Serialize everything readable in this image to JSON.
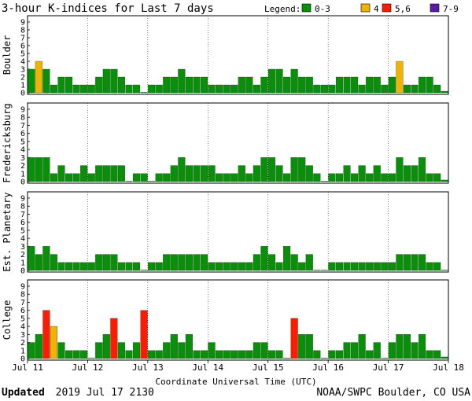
{
  "title": "3-hour K-indices for Last 7 days",
  "legend": {
    "label": "Legend:",
    "items": [
      {
        "label": "0-3",
        "color": "#0a8f0a"
      },
      {
        "label": "4",
        "color": "#f0b400"
      },
      {
        "label": "5,6",
        "color": "#ff1a00"
      },
      {
        "label": "7-9",
        "color": "#5b1aa8"
      }
    ]
  },
  "footer": {
    "updated_label": "Updated",
    "updated_value": "2019 Jul 17 2130",
    "credit": "NOAA/SWPC Boulder, CO USA"
  },
  "chart_data": {
    "type": "bar",
    "xlabel": "Coordinate Universal Time (UTC)",
    "x_ticks": [
      "Jul 11",
      "Jul 12",
      "Jul 13",
      "Jul 14",
      "Jul 15",
      "Jul 16",
      "Jul 17",
      "Jul 18"
    ],
    "ylim": [
      0,
      9
    ],
    "y_ticks": [
      0,
      1,
      2,
      3,
      4,
      5,
      6,
      7,
      8,
      9
    ],
    "bar_interval": "3 hours",
    "series": [
      {
        "name": "Boulder",
        "values": [
          3,
          4,
          3,
          1,
          2,
          2,
          1,
          1,
          1,
          2,
          3,
          3,
          2,
          1,
          1,
          0,
          1,
          1,
          2,
          2,
          3,
          2,
          2,
          2,
          1,
          1,
          1,
          1,
          2,
          2,
          1,
          2,
          3,
          3,
          2,
          3,
          2,
          2,
          1,
          1,
          1,
          2,
          2,
          2,
          1,
          2,
          2,
          1,
          2,
          4,
          1,
          1,
          2,
          2,
          1,
          0.2
        ]
      },
      {
        "name": "Fredericksburg",
        "values": [
          3,
          3,
          3,
          1,
          2,
          1,
          1,
          2,
          1,
          2,
          2,
          2,
          2,
          0,
          1,
          1,
          0,
          1,
          1,
          2,
          3,
          2,
          2,
          2,
          2,
          1,
          1,
          1,
          2,
          1,
          2,
          3,
          3,
          2,
          1,
          3,
          3,
          2,
          1,
          0,
          1,
          1,
          2,
          1,
          2,
          1,
          2,
          1,
          1,
          3,
          2,
          2,
          3,
          1,
          1,
          0.2
        ]
      },
      {
        "name": "Est. Planetary",
        "values": [
          3,
          2,
          3,
          2,
          1,
          1,
          1,
          1,
          1,
          2,
          2,
          2,
          1,
          1,
          1,
          0,
          1,
          1,
          2,
          2,
          2,
          2,
          2,
          2,
          1,
          1,
          1,
          1,
          1,
          1,
          2,
          3,
          2,
          1,
          3,
          2,
          1,
          2,
          0,
          0,
          1,
          1,
          1,
          1,
          1,
          1,
          1,
          1,
          1,
          2,
          2,
          2,
          2,
          1,
          1,
          0
        ]
      },
      {
        "name": "College",
        "values": [
          2,
          3,
          6,
          4,
          2,
          1,
          1,
          1,
          0,
          2,
          3,
          5,
          2,
          1,
          2,
          6,
          1,
          1,
          2,
          3,
          2,
          3,
          1,
          1,
          2,
          1,
          1,
          1,
          1,
          1,
          2,
          2,
          1,
          1,
          0,
          5,
          3,
          3,
          1,
          0,
          1,
          1,
          2,
          2,
          3,
          1,
          2,
          0,
          2,
          3,
          3,
          2,
          3,
          1,
          1,
          0.2
        ]
      }
    ]
  }
}
